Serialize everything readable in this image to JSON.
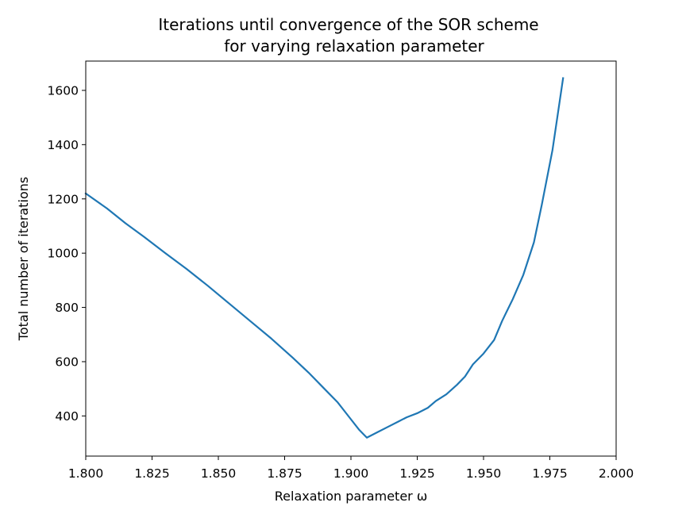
{
  "chart_data": {
    "type": "line",
    "title_line1": "Iterations until convergence of the SOR scheme",
    "title_line2": "for varying relaxation parameter",
    "xlabel": "Relaxation parameter ω",
    "ylabel": "Total number of iterations",
    "xlim": [
      1.8,
      2.0
    ],
    "ylim": [
      252,
      1708
    ],
    "xticks": [
      1.8,
      1.825,
      1.85,
      1.875,
      1.9,
      1.925,
      1.95,
      1.975,
      2.0
    ],
    "xtick_labels": [
      "1.800",
      "1.825",
      "1.850",
      "1.875",
      "1.900",
      "1.925",
      "1.950",
      "1.975",
      "2.000"
    ],
    "yticks": [
      400,
      600,
      800,
      1000,
      1200,
      1400,
      1600
    ],
    "ytick_labels": [
      "400",
      "600",
      "800",
      "1000",
      "1200",
      "1400",
      "1600"
    ],
    "grid": false,
    "series": [
      {
        "color": "#1f77b4",
        "x": [
          1.8,
          1.808,
          1.815,
          1.822,
          1.83,
          1.838,
          1.846,
          1.854,
          1.862,
          1.87,
          1.878,
          1.884,
          1.89,
          1.895,
          1.899,
          1.903,
          1.906,
          1.91,
          1.914,
          1.918,
          1.921,
          1.925,
          1.929,
          1.932,
          1.936,
          1.94,
          1.943,
          1.946,
          1.95,
          1.954,
          1.957,
          1.961,
          1.965,
          1.969,
          1.972,
          1.976,
          1.98
        ],
        "y": [
          1220,
          1165,
          1110,
          1060,
          1000,
          942,
          880,
          815,
          750,
          685,
          615,
          560,
          500,
          450,
          400,
          350,
          320,
          340,
          360,
          380,
          395,
          410,
          430,
          455,
          480,
          515,
          545,
          590,
          630,
          680,
          750,
          830,
          920,
          1040,
          1180,
          1380,
          1645
        ]
      }
    ]
  }
}
